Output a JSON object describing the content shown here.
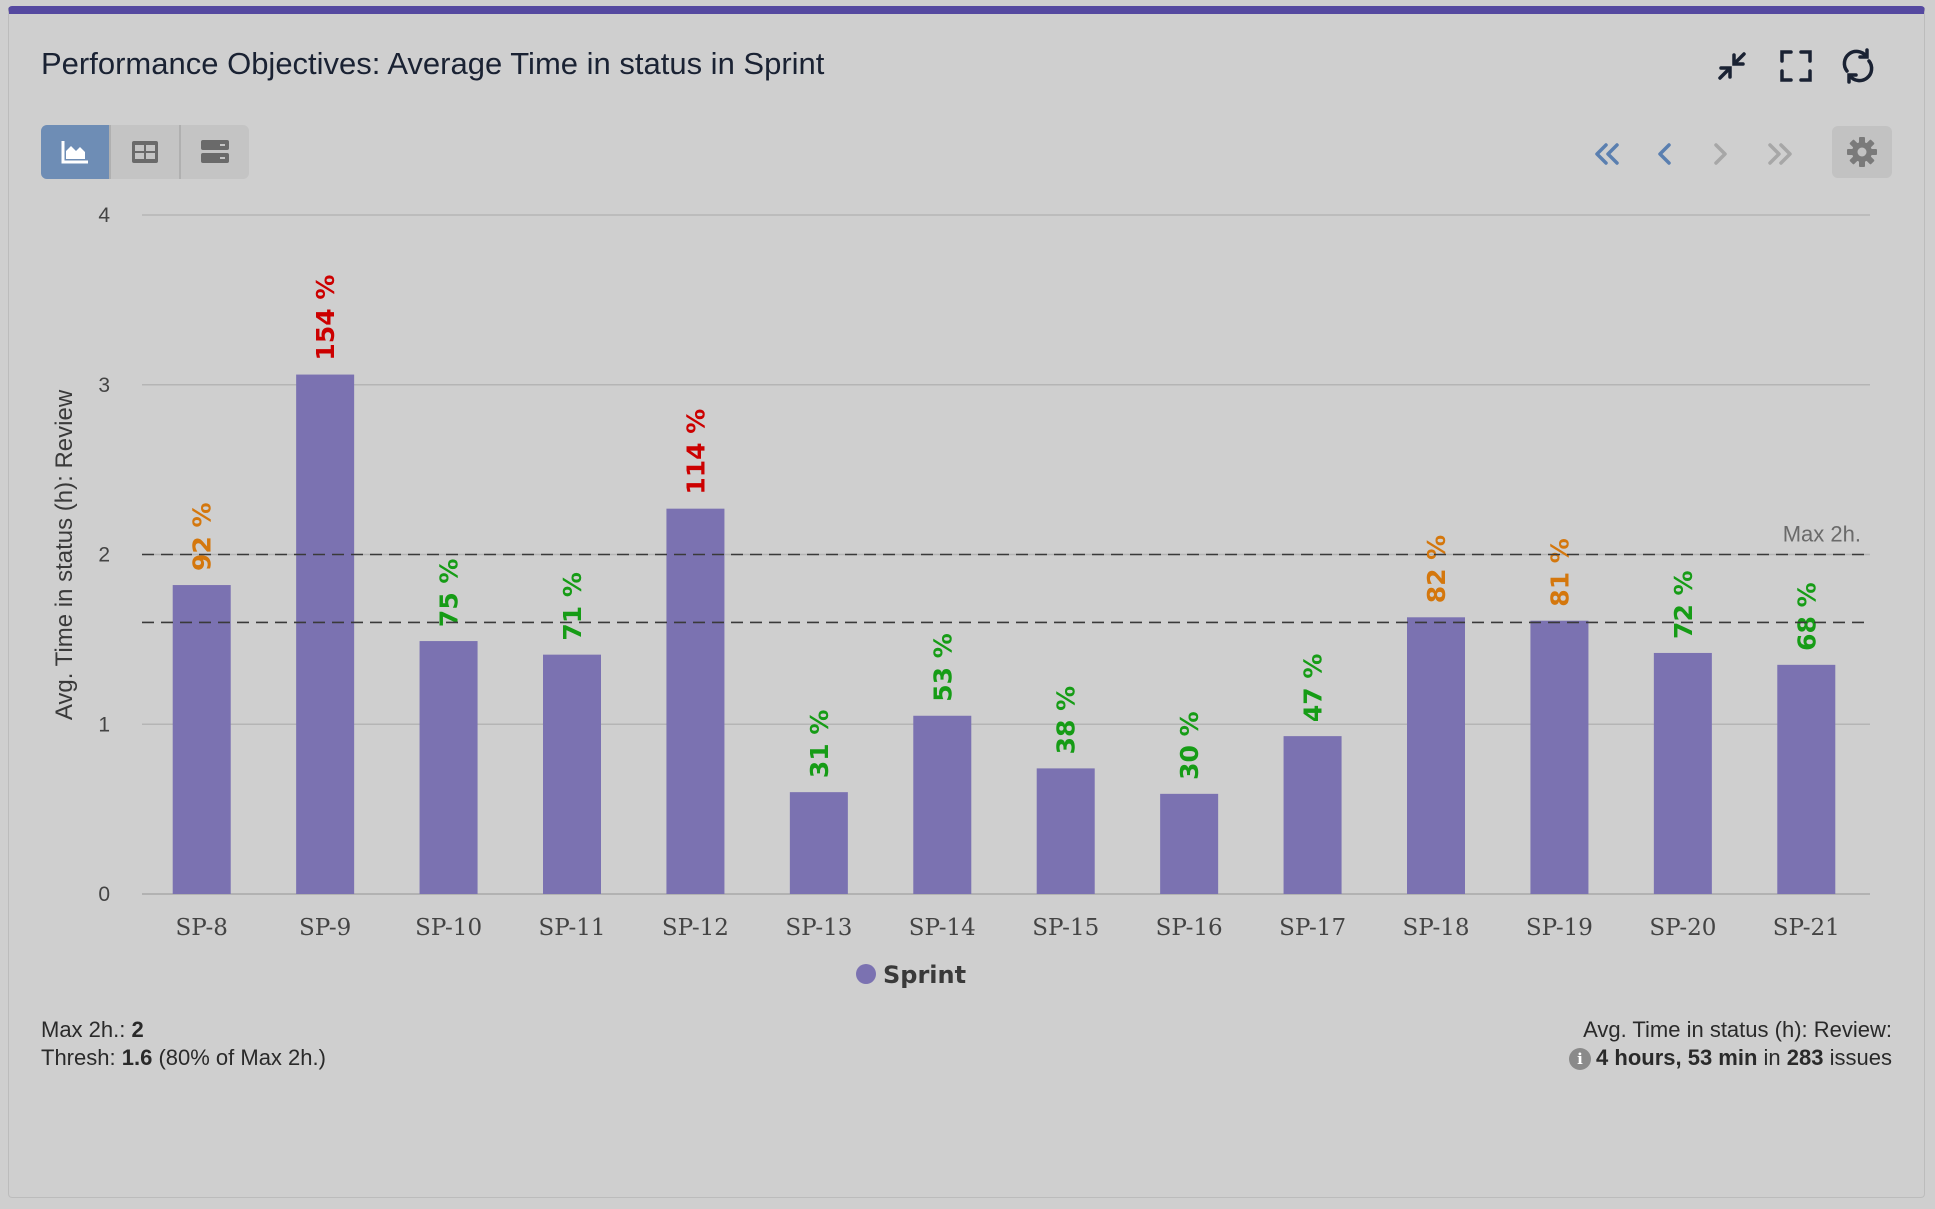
{
  "header": {
    "title": "Performance Objectives: Average Time in status in Sprint"
  },
  "toolbar": {
    "views": [
      {
        "icon": "area-chart-icon",
        "active": true
      },
      {
        "icon": "table-icon",
        "active": false
      },
      {
        "icon": "list-icon",
        "active": false
      }
    ],
    "header_icons": [
      "collapse-icon",
      "fullscreen-icon",
      "refresh-icon"
    ],
    "nav_icons": [
      "first-page-icon",
      "previous-icon",
      "next-icon",
      "last-page-icon"
    ],
    "settings_icon": "gear-icon"
  },
  "colors": {
    "bar": "#7b72b1",
    "accent": "#5549a0",
    "label_green": "#169c16",
    "label_orange": "#d4770d",
    "label_red": "#cc0000"
  },
  "chart_data": {
    "type": "bar",
    "ylabel": "Avg. Time in status (h): Review",
    "ylim": [
      0,
      4
    ],
    "yticks": [
      "0",
      "1",
      "2",
      "3",
      "4"
    ],
    "categories": [
      "SP-8",
      "SP-9",
      "SP-10",
      "SP-11",
      "SP-12",
      "SP-13",
      "SP-14",
      "SP-15",
      "SP-16",
      "SP-17",
      "SP-18",
      "SP-19",
      "SP-20",
      "SP-21"
    ],
    "series": [
      {
        "name": "Sprint",
        "values": [
          1.82,
          3.06,
          1.49,
          1.41,
          2.27,
          0.6,
          1.05,
          0.74,
          0.59,
          0.93,
          1.63,
          1.61,
          1.42,
          1.35
        ]
      }
    ],
    "data_labels": [
      "92 %",
      "154 %",
      "75 %",
      "71 %",
      "114 %",
      "31 %",
      "53 %",
      "38 %",
      "30 %",
      "47 %",
      "82 %",
      "81 %",
      "72 %",
      "68 %"
    ],
    "label_colors": [
      "orange",
      "red",
      "green",
      "green",
      "red",
      "green",
      "green",
      "green",
      "green",
      "green",
      "orange",
      "orange",
      "green",
      "green"
    ],
    "reference_lines": [
      {
        "value": 2,
        "label": "Max 2h."
      },
      {
        "value": 1.6,
        "label": ""
      }
    ],
    "legend": {
      "entries": [
        "Sprint"
      ],
      "position": "bottom"
    },
    "grid": true
  },
  "footer": {
    "max_label": "Max 2h.:",
    "max_value": "2",
    "thresh_label": "Thresh:",
    "thresh_value": "1.6",
    "thresh_note": "(80% of Max 2h.)",
    "avg_title": "Avg. Time in status (h): Review:",
    "avg_value": "4 hours, 53 min",
    "avg_in": "in",
    "avg_count": "283",
    "avg_unit": "issues"
  }
}
